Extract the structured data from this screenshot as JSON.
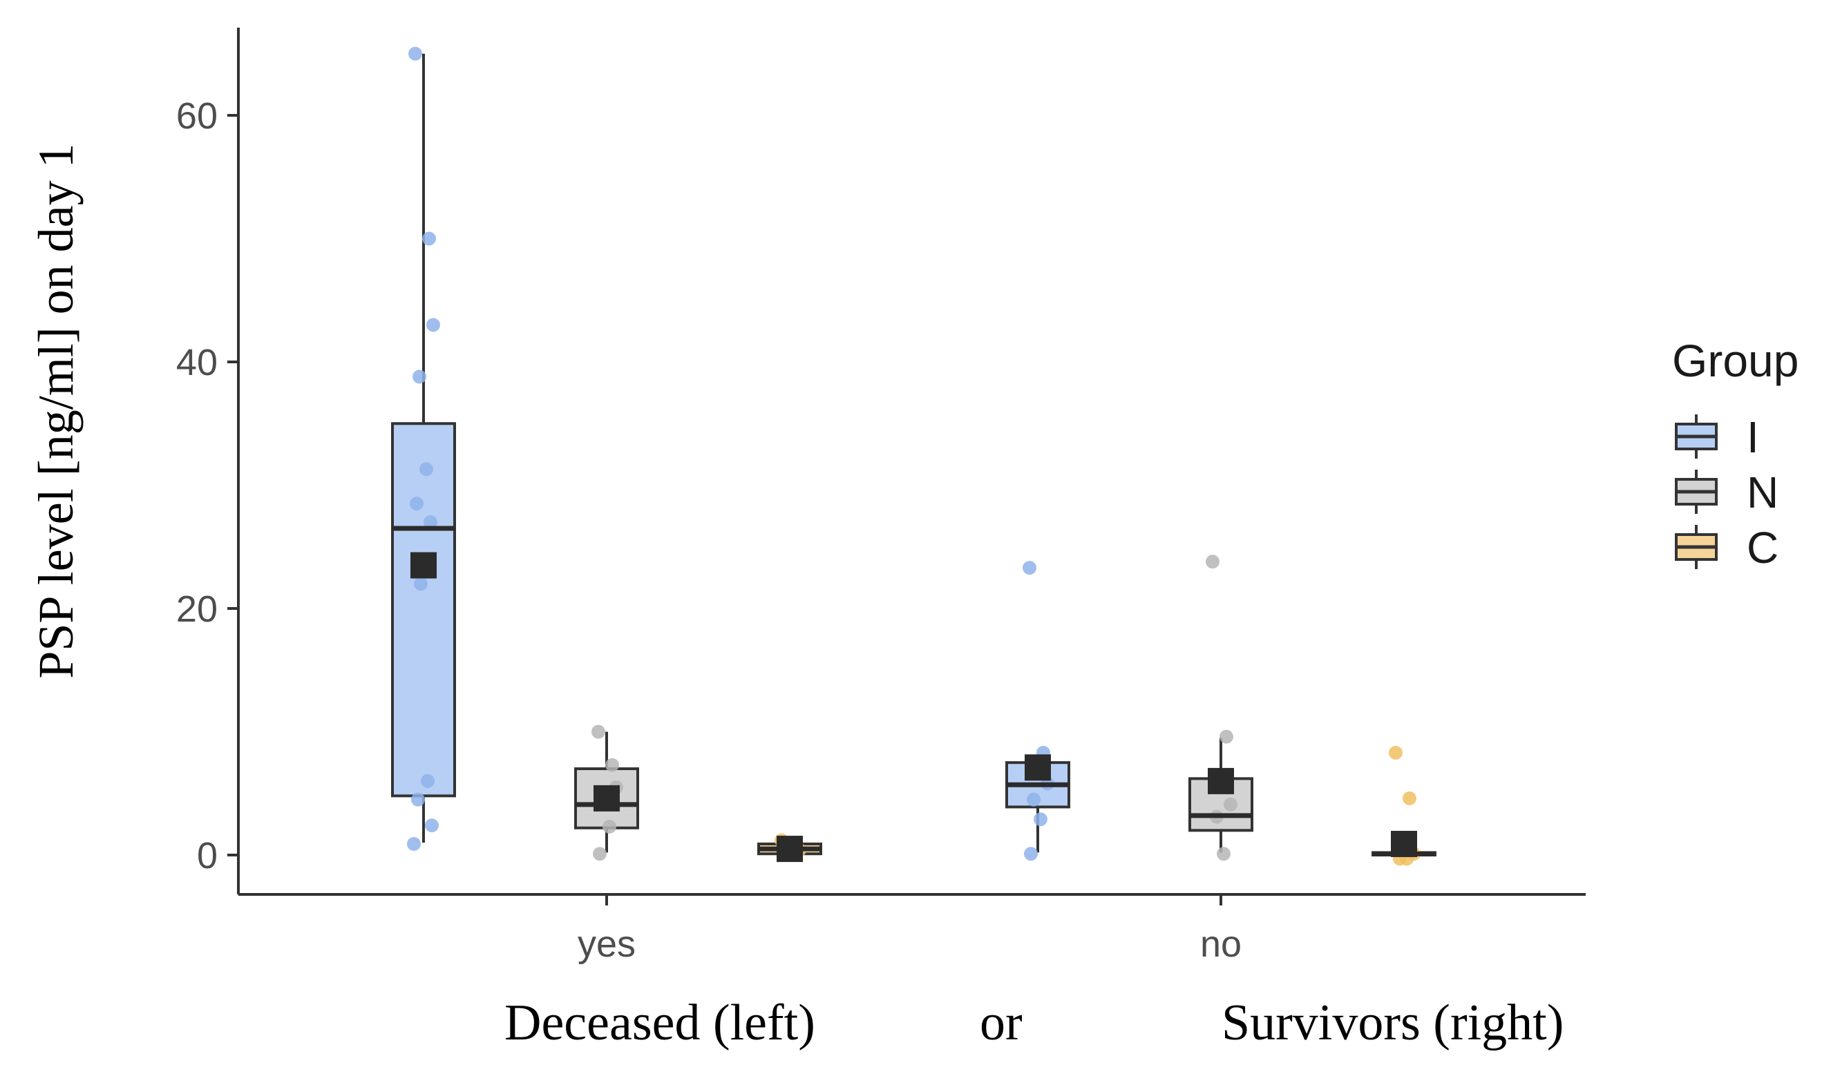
{
  "chart_data": {
    "type": "boxplot",
    "ylabel": "PSP level [ng/ml] on day 1",
    "xlabel_parts": [
      "Deceased (left)",
      "or",
      "Survivors  (right)"
    ],
    "categories": [
      "yes",
      "no"
    ],
    "ylim": [
      -3.3,
      67
    ],
    "yticks": [
      0,
      20,
      40,
      60
    ],
    "legend": {
      "title": "Group",
      "position": "right",
      "entries": [
        {
          "label": "I",
          "fill": "#b7cff5",
          "stroke": "#333333"
        },
        {
          "label": "N",
          "fill": "#d3d3d3",
          "stroke": "#333333"
        },
        {
          "label": "C",
          "fill": "#f5d39a",
          "stroke": "#333333"
        }
      ]
    },
    "groups": [
      "I",
      "N",
      "C"
    ],
    "colors": {
      "I": "#b7cff5",
      "N": "#d3d3d3",
      "C": "#f5d39a",
      "I_point": "#8fb3ea",
      "N_point": "#b5b5b5",
      "C_point": "#f0c060",
      "mean": "#2b2b2b",
      "box_stroke": "#333333"
    },
    "boxes": [
      {
        "category": "yes",
        "group": "I",
        "whisker_low": 1,
        "q1": 4.8,
        "median": 26.5,
        "q3": 35,
        "whisker_high": 65,
        "mean": 23.5,
        "points": [
          65,
          50,
          43,
          38.8,
          31.3,
          28.5,
          27,
          22,
          6,
          4.5,
          2.4,
          0.9
        ]
      },
      {
        "category": "yes",
        "group": "N",
        "whisker_low": 0.2,
        "q1": 2.2,
        "median": 4.1,
        "q3": 7,
        "whisker_high": 10,
        "mean": 4.6,
        "points": [
          10,
          7.3,
          5.5,
          4.2,
          2.3,
          0.1
        ]
      },
      {
        "category": "yes",
        "group": "C",
        "whisker_low": 0,
        "q1": 0.1,
        "median": 0.5,
        "q3": 0.9,
        "whisker_high": 1.2,
        "mean": 0.5,
        "points": [
          1.2,
          0.8,
          0.4,
          0.1
        ]
      },
      {
        "category": "no",
        "group": "I",
        "whisker_low": 0.2,
        "q1": 3.9,
        "median": 5.7,
        "q3": 7.5,
        "whisker_high": 8.1,
        "mean": 7.1,
        "points": [
          23.3,
          8.3,
          5.8,
          4.5,
          2.9,
          0.1
        ]
      },
      {
        "category": "no",
        "group": "N",
        "whisker_low": 0.2,
        "q1": 2,
        "median": 3.2,
        "q3": 6.2,
        "whisker_high": 9.5,
        "mean": 6,
        "points": [
          23.8,
          9.6,
          4.1,
          3.1,
          0.1
        ]
      },
      {
        "category": "no",
        "group": "C",
        "whisker_low": 0,
        "q1": 0,
        "median": 0.1,
        "q3": 0.2,
        "whisker_high": 0.3,
        "mean": 0.9,
        "points": [
          8.3,
          4.6,
          0.1,
          -0.3,
          -0.3
        ]
      }
    ]
  }
}
